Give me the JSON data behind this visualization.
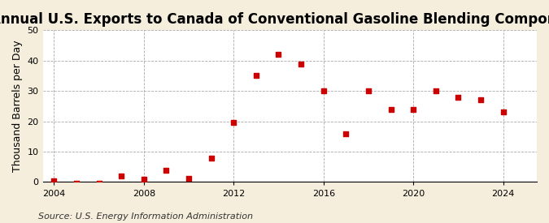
{
  "title": "Annual U.S. Exports to Canada of Conventional Gasoline Blending Components",
  "ylabel": "Thousand Barrels per Day",
  "source_text": "Source: U.S. Energy Information Administration",
  "years": [
    2004,
    2005,
    2006,
    2007,
    2008,
    2009,
    2010,
    2011,
    2012,
    2013,
    2014,
    2015,
    2016,
    2017,
    2018,
    2019,
    2020,
    2021,
    2022,
    2023,
    2024
  ],
  "values": [
    0.3,
    -0.5,
    -0.3,
    2.0,
    1.0,
    4.0,
    1.2,
    8.0,
    19.5,
    35.0,
    42.0,
    39.0,
    30.0,
    16.0,
    30.0,
    24.0,
    24.0,
    30.0,
    28.0,
    27.0,
    23.0
  ],
  "marker_color": "#cc0000",
  "bg_color": "#f5eedc",
  "plot_bg_color": "#ffffff",
  "ylim": [
    0,
    50
  ],
  "yticks": [
    0,
    10,
    20,
    30,
    40,
    50
  ],
  "xlim": [
    2003.5,
    2025.5
  ],
  "xticks": [
    2004,
    2008,
    2012,
    2016,
    2020,
    2024
  ],
  "vgrid_years": [
    2004,
    2008,
    2012,
    2016,
    2020,
    2024
  ],
  "title_fontsize": 12,
  "ylabel_fontsize": 9,
  "source_fontsize": 8
}
